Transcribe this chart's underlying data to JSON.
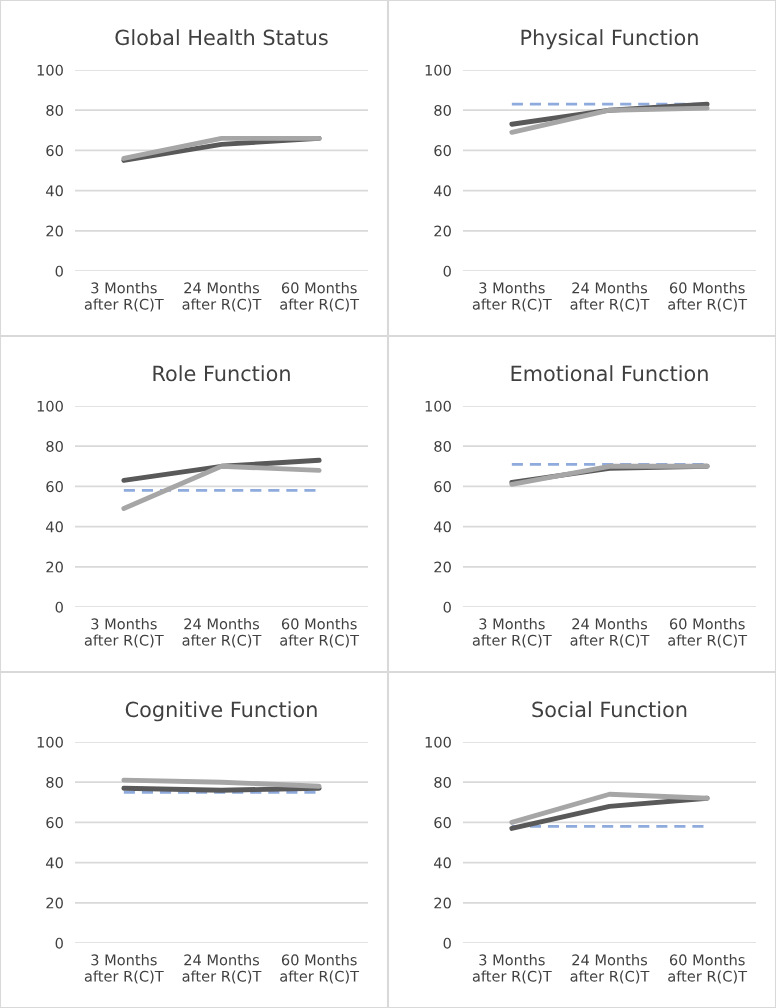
{
  "chart_data": [
    {
      "type": "line",
      "title": "Global Health Status",
      "categories": [
        "3 Months\nafter R(C)T",
        "24 Months\nafter R(C)T",
        "60 Months\nafter R(C)T"
      ],
      "series": [
        {
          "color": "#595959",
          "values": [
            55,
            63,
            66
          ]
        },
        {
          "color": "#a6a6a6",
          "values": [
            56,
            66,
            66
          ]
        }
      ],
      "ylim": [
        0,
        100
      ],
      "yticks": [
        0,
        20,
        40,
        60,
        80,
        100
      ],
      "grid": "y"
    },
    {
      "type": "line",
      "title": "Physical Function",
      "categories": [
        "3 Months\nafter R(C)T",
        "24 Months\nafter R(C)T",
        "60 Months\nafter R(C)T"
      ],
      "series": [
        {
          "color": "#595959",
          "values": [
            73,
            80,
            83
          ]
        },
        {
          "color": "#a6a6a6",
          "values": [
            69,
            80,
            81
          ]
        }
      ],
      "ylim": [
        0,
        100
      ],
      "yticks": [
        0,
        20,
        40,
        60,
        80,
        100
      ],
      "grid": "y",
      "ref_lines": [
        {
          "axis": "y",
          "value": 83,
          "color": "#8faadc",
          "line_style": "dashed"
        }
      ]
    },
    {
      "type": "line",
      "title": "Role Function",
      "categories": [
        "3 Months\nafter R(C)T",
        "24 Months\nafter R(C)T",
        "60 Months\nafter R(C)T"
      ],
      "series": [
        {
          "color": "#595959",
          "values": [
            63,
            70,
            73
          ]
        },
        {
          "color": "#a6a6a6",
          "values": [
            49,
            70,
            68
          ]
        }
      ],
      "ylim": [
        0,
        100
      ],
      "yticks": [
        0,
        20,
        40,
        60,
        80,
        100
      ],
      "grid": "y",
      "ref_lines": [
        {
          "axis": "y",
          "value": 58,
          "color": "#8faadc",
          "line_style": "dashed"
        }
      ]
    },
    {
      "type": "line",
      "title": "Emotional Function",
      "categories": [
        "3 Months\nafter R(C)T",
        "24 Months\nafter R(C)T",
        "60 Months\nafter R(C)T"
      ],
      "series": [
        {
          "color": "#595959",
          "values": [
            62,
            69,
            70
          ]
        },
        {
          "color": "#a6a6a6",
          "values": [
            61,
            70,
            70
          ]
        }
      ],
      "ylim": [
        0,
        100
      ],
      "yticks": [
        0,
        20,
        40,
        60,
        80,
        100
      ],
      "grid": "y",
      "ref_lines": [
        {
          "axis": "y",
          "value": 71,
          "color": "#8faadc",
          "line_style": "dashed"
        }
      ]
    },
    {
      "type": "line",
      "title": "Cognitive Function",
      "categories": [
        "3 Months\nafter R(C)T",
        "24 Months\nafter R(C)T",
        "60 Months\nafter R(C)T"
      ],
      "series": [
        {
          "color": "#595959",
          "values": [
            77,
            76,
            77
          ]
        },
        {
          "color": "#a6a6a6",
          "values": [
            81,
            80,
            78
          ]
        }
      ],
      "ylim": [
        0,
        100
      ],
      "yticks": [
        0,
        20,
        40,
        60,
        80,
        100
      ],
      "grid": "y",
      "ref_lines": [
        {
          "axis": "y",
          "value": 75,
          "color": "#8faadc",
          "line_style": "dashed"
        }
      ]
    },
    {
      "type": "line",
      "title": "Social Function",
      "categories": [
        "3 Months\nafter R(C)T",
        "24 Months\nafter R(C)T",
        "60 Months\nafter R(C)T"
      ],
      "series": [
        {
          "color": "#595959",
          "values": [
            57,
            68,
            72
          ]
        },
        {
          "color": "#a6a6a6",
          "values": [
            60,
            74,
            72
          ]
        }
      ],
      "ylim": [
        0,
        100
      ],
      "yticks": [
        0,
        20,
        40,
        60,
        80,
        100
      ],
      "grid": "y",
      "ref_lines": [
        {
          "axis": "y",
          "value": 58,
          "color": "#8faadc",
          "line_style": "dashed"
        }
      ]
    }
  ]
}
